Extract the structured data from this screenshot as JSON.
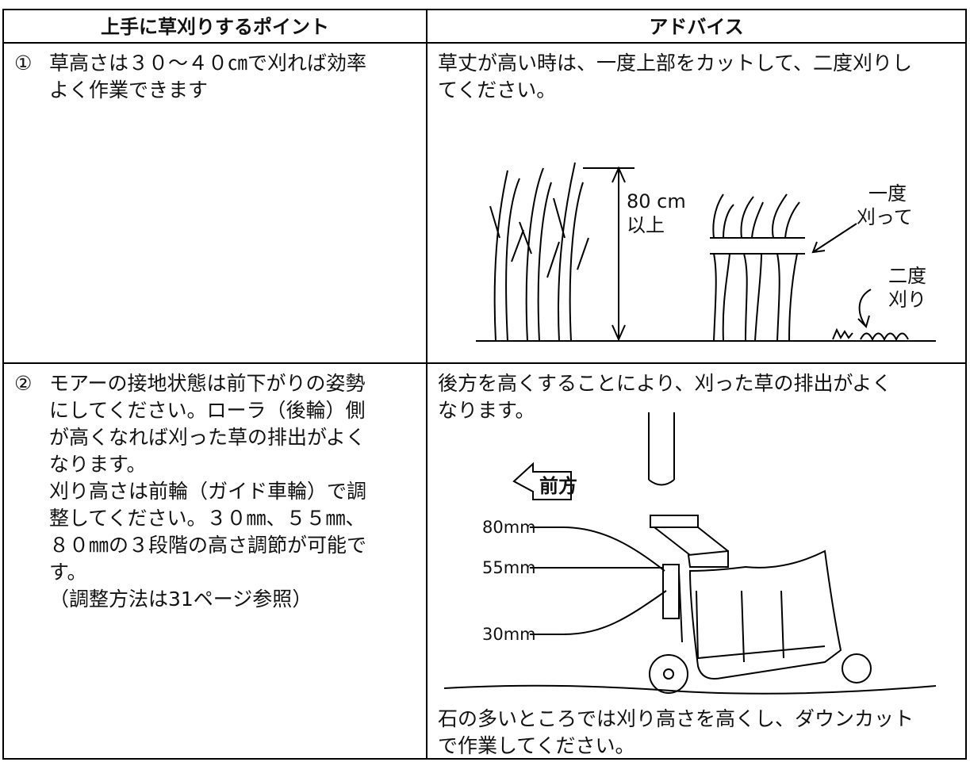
{
  "table": {
    "headers": [
      "上手に草刈りするポイント",
      "アドバイス"
    ],
    "rows": [
      {
        "number": "①",
        "point": [
          "草高さは３０～４０㎝で刈れば効率",
          "よく作業できます"
        ],
        "advice": [
          "草丈が高い時は、一度上部をカットして、二度刈りし",
          "てください。"
        ],
        "figure": {
          "height_label": [
            "80 cm",
            "以上"
          ],
          "first_cut": [
            "一度",
            "刈って"
          ],
          "second_cut": [
            "二度",
            "刈り"
          ]
        }
      },
      {
        "number": "②",
        "point": [
          "モアーの接地状態は前下がりの姿勢",
          "にしてください。ローラ（後輪）側",
          "が高くなれば刈った草の排出がよく",
          "なります。",
          "刈り高さは前輪（ガイド車輪）で調",
          "整してください。３０㎜、５５㎜、",
          "８０㎜の３段階の高さ調節が可能で",
          "す。",
          "（調整方法は31ページ参照）"
        ],
        "advice": [
          "後方を高くすることにより、刈った草の排出がよく",
          "なります。"
        ],
        "figure": {
          "direction": "前方",
          "heights": [
            "80mm",
            "55mm",
            "30mm"
          ]
        },
        "note": [
          "石の多いところでは刈り高さを高くし、ダウンカット",
          "で作業してください。"
        ]
      }
    ]
  }
}
